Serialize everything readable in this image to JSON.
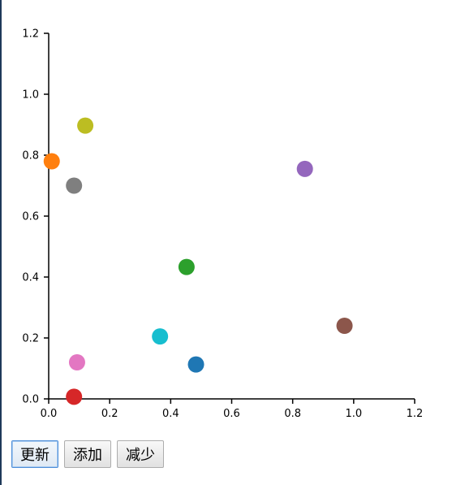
{
  "chart_data": {
    "type": "scatter",
    "title": "",
    "xlabel": "",
    "ylabel": "",
    "xlim": [
      0,
      1.2
    ],
    "ylim": [
      0,
      1.2
    ],
    "grid": false,
    "xticks": [
      "0.0",
      "0.2",
      "0.4",
      "0.6",
      "0.8",
      "1.0",
      "1.2"
    ],
    "yticks": [
      "0.0",
      "0.2",
      "0.4",
      "0.6",
      "0.8",
      "1.0",
      "1.2"
    ],
    "points": [
      {
        "x": 0.483,
        "y": 0.113,
        "color": "#1f77b4"
      },
      {
        "x": 0.01,
        "y": 0.78,
        "color": "#ff7f0e"
      },
      {
        "x": 0.452,
        "y": 0.433,
        "color": "#2ca02c"
      },
      {
        "x": 0.083,
        "y": 0.007,
        "color": "#d62728"
      },
      {
        "x": 0.84,
        "y": 0.755,
        "color": "#9467bd"
      },
      {
        "x": 0.97,
        "y": 0.24,
        "color": "#8c564b"
      },
      {
        "x": 0.093,
        "y": 0.12,
        "color": "#e377c2"
      },
      {
        "x": 0.083,
        "y": 0.7,
        "color": "#7f7f7f"
      },
      {
        "x": 0.12,
        "y": 0.897,
        "color": "#bcbd22"
      },
      {
        "x": 0.365,
        "y": 0.205,
        "color": "#17becf"
      }
    ]
  },
  "buttons": {
    "update": "更新",
    "add": "添加",
    "remove": "减少"
  }
}
